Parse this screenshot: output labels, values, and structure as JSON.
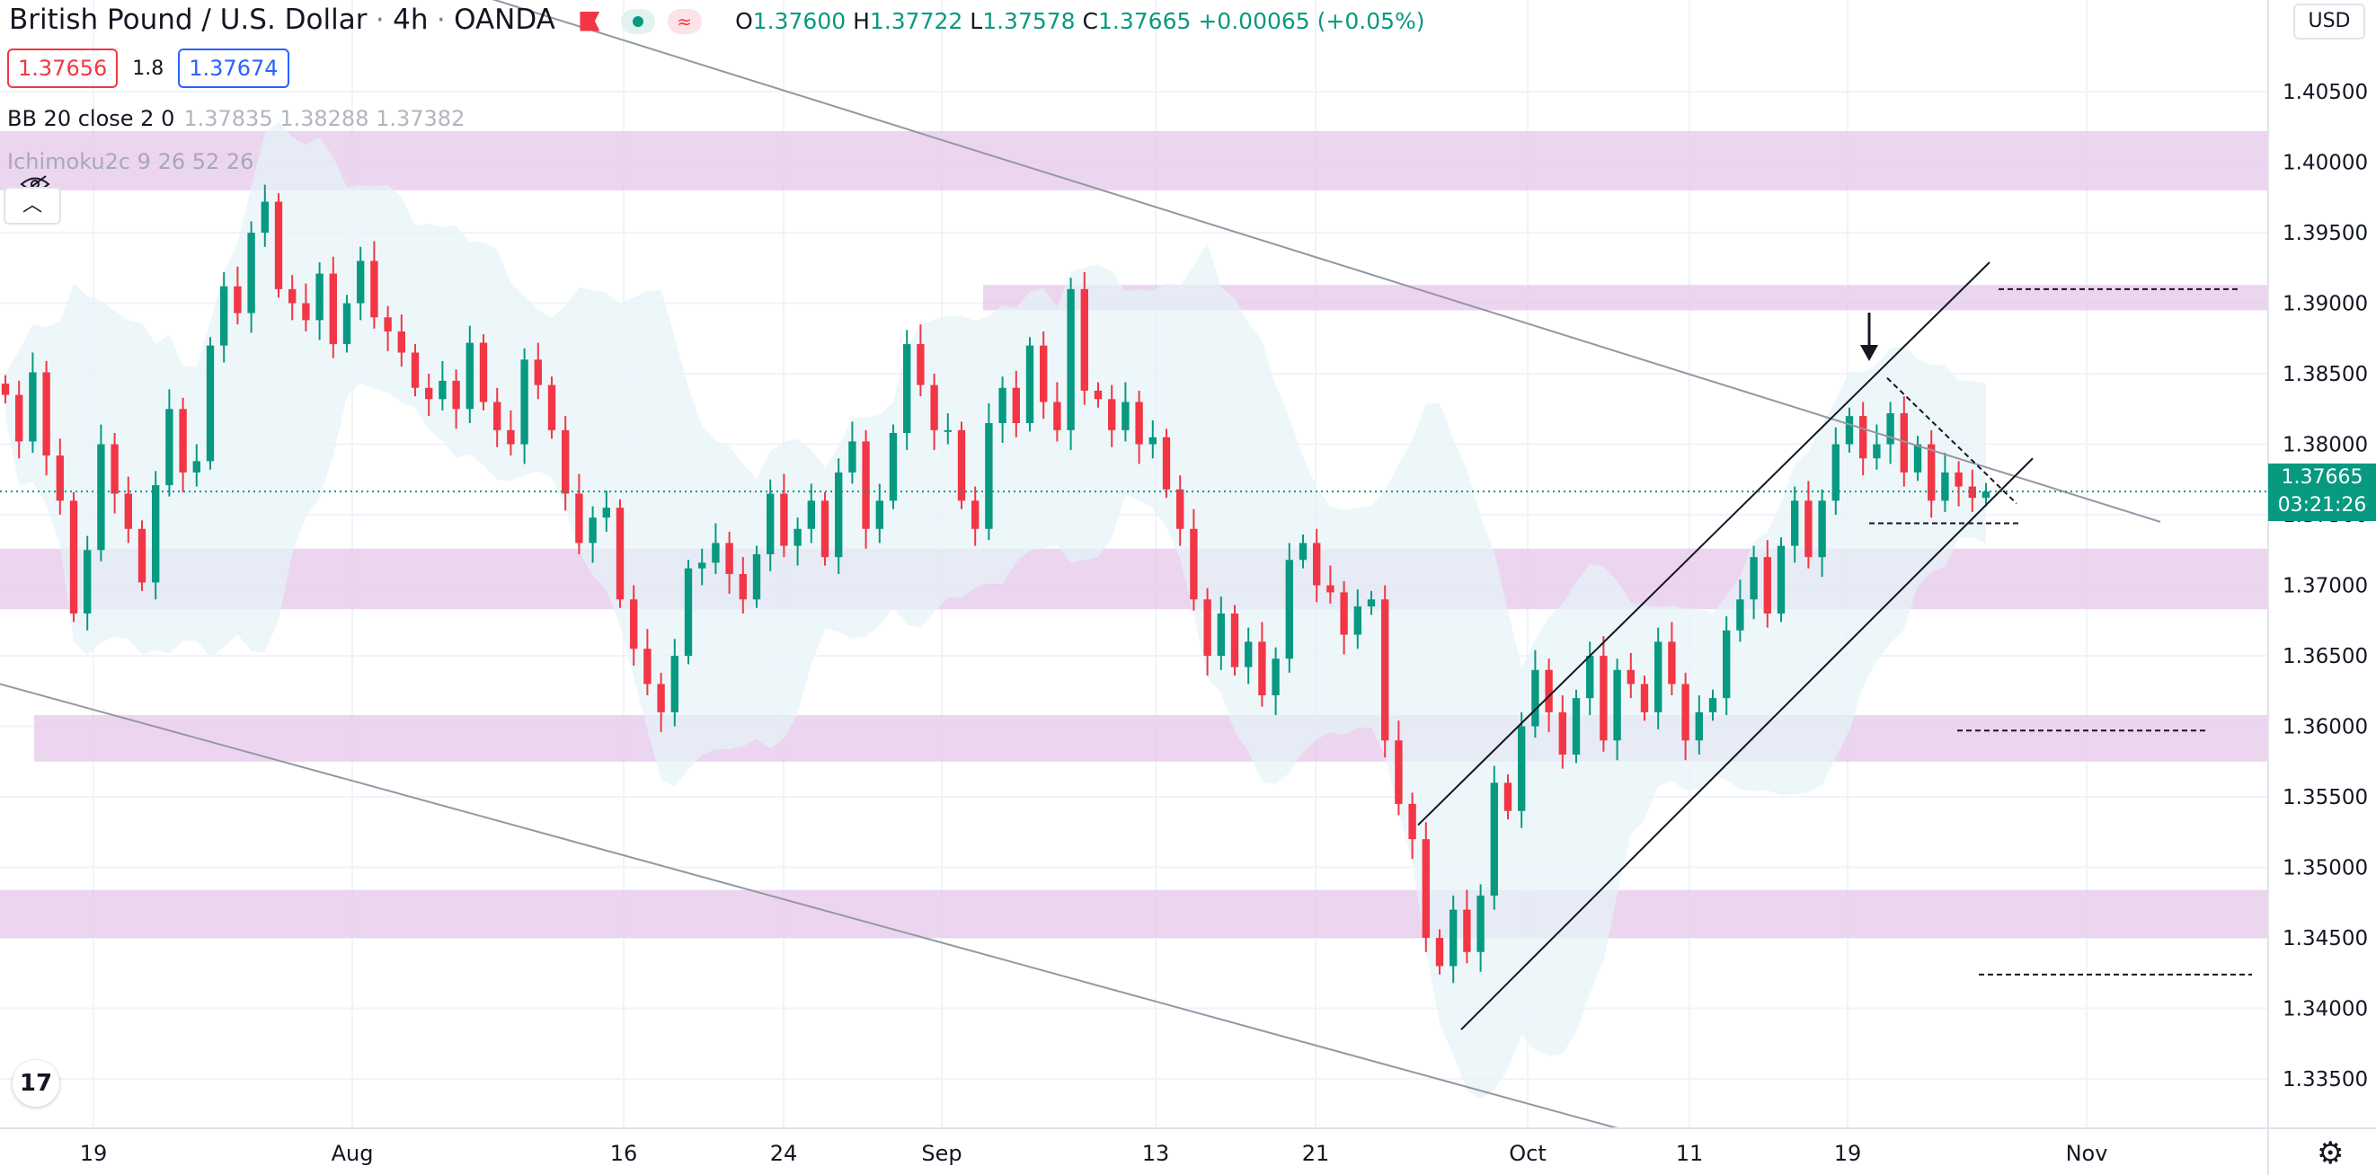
{
  "header": {
    "symbol_title": "British Pound / U.S. Dollar",
    "interval": "4h",
    "exchange": "OANDA",
    "ohlc": {
      "o_label": "O",
      "o": "1.37600",
      "h_label": "H",
      "h": "1.37722",
      "l_label": "L",
      "l": "1.37578",
      "c_label": "C",
      "c": "1.37665",
      "change": "+0.00065 (+0.05%)"
    },
    "sell_price": "1.37656",
    "spread": "1.8",
    "buy_price": "1.37674"
  },
  "indicators": [
    {
      "name": "BB 20 close 2 0",
      "values": "1.37835  1.38288  1.37382"
    },
    {
      "name": "Ichimoku2c 9 26 52 26",
      "values": ""
    }
  ],
  "currency_button": "USD",
  "last_price": {
    "value": "1.37665",
    "countdown": "03:21:26"
  },
  "chart_data": {
    "type": "candlestick",
    "y_range": [
      1.3315,
      1.4115
    ],
    "y_ticks": [
      "1.40500",
      "1.40000",
      "1.39500",
      "1.39000",
      "1.38500",
      "1.38000",
      "1.37500",
      "1.37000",
      "1.36500",
      "1.36000",
      "1.35500",
      "1.35000",
      "1.34500",
      "1.34000",
      "1.33500"
    ],
    "x_ticks": [
      "19",
      "Aug",
      "16",
      "24",
      "Sep",
      "13",
      "21",
      "Oct",
      "11",
      "19",
      "Nov"
    ],
    "colors": {
      "up": "#089981",
      "down": "#f23645",
      "zone": "#e6c8ea",
      "bb_fill": "#e6f4f8"
    },
    "zones": [
      {
        "low": 1.398,
        "high": 1.4022
      },
      {
        "low": 1.3895,
        "high": 1.3913
      },
      {
        "low": 1.3683,
        "high": 1.3726
      },
      {
        "low": 1.3575,
        "high": 1.3608
      },
      {
        "low": 1.345,
        "high": 1.3484
      }
    ],
    "closes": [
      1.3835,
      1.3802,
      1.3851,
      1.3792,
      1.376,
      1.368,
      1.3725,
      1.38,
      1.3765,
      1.374,
      1.3702,
      1.3771,
      1.3825,
      1.378,
      1.3788,
      1.387,
      1.3912,
      1.3893,
      1.395,
      1.3972,
      1.391,
      1.39,
      1.3888,
      1.3921,
      1.3871,
      1.39,
      1.393,
      1.389,
      1.388,
      1.3865,
      1.384,
      1.3832,
      1.3845,
      1.3825,
      1.3872,
      1.383,
      1.381,
      1.38,
      1.386,
      1.3842,
      1.381,
      1.3765,
      1.373,
      1.3748,
      1.3755,
      1.369,
      1.3655,
      1.363,
      1.361,
      1.365,
      1.3712,
      1.3716,
      1.373,
      1.3708,
      1.369,
      1.3722,
      1.3765,
      1.3728,
      1.374,
      1.376,
      1.372,
      1.378,
      1.3802,
      1.374,
      1.376,
      1.3808,
      1.3871,
      1.3842,
      1.381,
      1.381,
      1.376,
      1.374,
      1.3815,
      1.384,
      1.3815,
      1.387,
      1.383,
      1.381,
      1.391,
      1.3838,
      1.3832,
      1.381,
      1.383,
      1.38,
      1.3805,
      1.3768,
      1.374,
      1.369,
      1.365,
      1.368,
      1.3642,
      1.366,
      1.3622,
      1.3648,
      1.3718,
      1.373,
      1.37,
      1.3695,
      1.3665,
      1.3685,
      1.369,
      1.359,
      1.3545,
      1.352,
      1.345,
      1.343,
      1.347,
      1.344,
      1.348,
      1.356,
      1.354,
      1.36,
      1.364,
      1.361,
      1.358,
      1.362,
      1.365,
      1.359,
      1.364,
      1.363,
      1.361,
      1.366,
      1.363,
      1.359,
      1.361,
      1.362,
      1.3668,
      1.369,
      1.372,
      1.368,
      1.3728,
      1.376,
      1.372,
      1.376,
      1.38,
      1.382,
      1.379,
      1.38,
      1.3822,
      1.378,
      1.38,
      1.376,
      1.378,
      1.377,
      1.3762,
      1.37665
    ],
    "annotations": {
      "channel_down_upper": [
        [
          0,
          1.4225
        ],
        [
          2404,
          1.3745
        ]
      ],
      "channel_down_lower": [
        [
          0,
          1.363
        ],
        [
          1800,
          1.3315
        ]
      ],
      "channel_up_upper": [
        [
          1578,
          1.353
        ],
        [
          2214,
          1.3929
        ]
      ],
      "channel_up_lower": [
        [
          1626,
          1.3385
        ],
        [
          2262,
          1.379
        ]
      ],
      "triangle_top": [
        [
          2100,
          1.3847
        ],
        [
          2244,
          1.3758
        ]
      ],
      "triangle_base": [
        [
          2080,
          1.3744
        ],
        [
          2248,
          1.3744
        ]
      ],
      "dashed_levels": [
        {
          "price": 1.391,
          "x1": 2224,
          "x2": 2494
        },
        {
          "price": 1.3597,
          "x1": 2178,
          "x2": 2456
        },
        {
          "price": 1.3424,
          "x1": 2202,
          "x2": 2506
        }
      ]
    }
  }
}
